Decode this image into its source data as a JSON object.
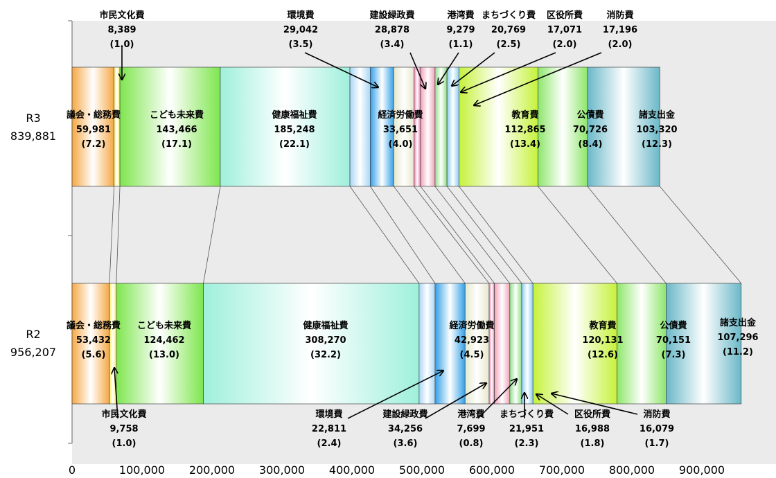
{
  "chart_data": {
    "type": "bar",
    "orientation": "horizontal-stacked",
    "xlim": [
      0,
      1000000
    ],
    "x_ticks": [
      "0",
      "100,000",
      "200,000",
      "300,000",
      "400,000",
      "500,000",
      "600,000",
      "700,000",
      "800,000",
      "900,000"
    ],
    "rows": [
      {
        "name": "R3",
        "total": "839,881",
        "segments": [
          {
            "category": "議会・総務費",
            "value": 59981,
            "value_label": "59,981",
            "pct_label": "(7.2)",
            "color": "#f5a845"
          },
          {
            "category": "市民文化費",
            "value": 8389,
            "value_label": "8,389",
            "pct_label": "(1.0)",
            "color": "#fff06a"
          },
          {
            "category": "こども未来費",
            "value": 143466,
            "value_label": "143,466",
            "pct_label": "(17.1)",
            "color": "#7ee64e"
          },
          {
            "category": "健康福祉費",
            "value": 185248,
            "value_label": "185,248",
            "pct_label": "(22.1)",
            "color": "#9ff0dc"
          },
          {
            "category": "環境費",
            "value": 29042,
            "value_label": "29,042",
            "pct_label": "(3.5)",
            "color": "#a9d6f5"
          },
          {
            "category": "経済労働費",
            "value": 33651,
            "value_label": "33,651",
            "pct_label": "(4.0)",
            "color": "#33a0e8"
          },
          {
            "category": "建設緑政費",
            "value": 28878,
            "value_label": "28,878",
            "pct_label": "(3.4)",
            "color": "#e6e8cc"
          },
          {
            "category": "港湾費",
            "value": 9279,
            "value_label": "9,279",
            "pct_label": "(1.1)",
            "color": "#f07ab0"
          },
          {
            "category": "まちづくり費",
            "value": 20769,
            "value_label": "20,769",
            "pct_label": "(2.5)",
            "color": "#f2a2b8"
          },
          {
            "category": "区役所費",
            "value": 17071,
            "value_label": "17,071",
            "pct_label": "(2.0)",
            "color": "#8fe08a"
          },
          {
            "category": "消防費",
            "value": 17196,
            "value_label": "17,196",
            "pct_label": "(2.0)",
            "color": "#8ccff2"
          },
          {
            "category": "教育費",
            "value": 112865,
            "value_label": "112,865",
            "pct_label": "(13.4)",
            "color": "#c5f23a"
          },
          {
            "category": "公債費",
            "value": 70726,
            "value_label": "70,726",
            "pct_label": "(8.4)",
            "color": "#8ee66a"
          },
          {
            "category": "諸支出金",
            "value": 103320,
            "value_label": "103,320",
            "pct_label": "(12.3)",
            "color": "#6ab8c8"
          }
        ]
      },
      {
        "name": "R2",
        "total": "956,207",
        "segments": [
          {
            "category": "議会・総務費",
            "value": 53432,
            "value_label": "53,432",
            "pct_label": "(5.6)",
            "color": "#f5a845"
          },
          {
            "category": "市民文化費",
            "value": 9758,
            "value_label": "9,758",
            "pct_label": "(1.0)",
            "color": "#fff06a"
          },
          {
            "category": "こども未来費",
            "value": 124462,
            "value_label": "124,462",
            "pct_label": "(13.0)",
            "color": "#7ee64e"
          },
          {
            "category": "健康福祉費",
            "value": 308270,
            "value_label": "308,270",
            "pct_label": "(32.2)",
            "color": "#9ff0dc"
          },
          {
            "category": "環境費",
            "value": 22811,
            "value_label": "22,811",
            "pct_label": "(2.4)",
            "color": "#a9d6f5"
          },
          {
            "category": "経済労働費",
            "value": 42923,
            "value_label": "42,923",
            "pct_label": "(4.5)",
            "color": "#33a0e8"
          },
          {
            "category": "建設緑政費",
            "value": 34256,
            "value_label": "34,256",
            "pct_label": "(3.6)",
            "color": "#e6e8cc"
          },
          {
            "category": "港湾費",
            "value": 7699,
            "value_label": "7,699",
            "pct_label": "(0.8)",
            "color": "#f07ab0"
          },
          {
            "category": "まちづくり費",
            "value": 21951,
            "value_label": "21,951",
            "pct_label": "(2.3)",
            "color": "#f2a2b8"
          },
          {
            "category": "区役所費",
            "value": 16988,
            "value_label": "16,988",
            "pct_label": "(1.8)",
            "color": "#8fe08a"
          },
          {
            "category": "消防費",
            "value": 16079,
            "value_label": "16,079",
            "pct_label": "(1.7)",
            "color": "#8ccff2"
          },
          {
            "category": "教育費",
            "value": 120131,
            "value_label": "120,131",
            "pct_label": "(12.6)",
            "color": "#c5f23a"
          },
          {
            "category": "公債費",
            "value": 70151,
            "value_label": "70,151",
            "pct_label": "(7.3)",
            "color": "#8ee66a"
          },
          {
            "category": "諸支出金",
            "value": 107296,
            "value_label": "107,296",
            "pct_label": "(11.2)",
            "color": "#6ab8c8"
          }
        ]
      }
    ]
  }
}
